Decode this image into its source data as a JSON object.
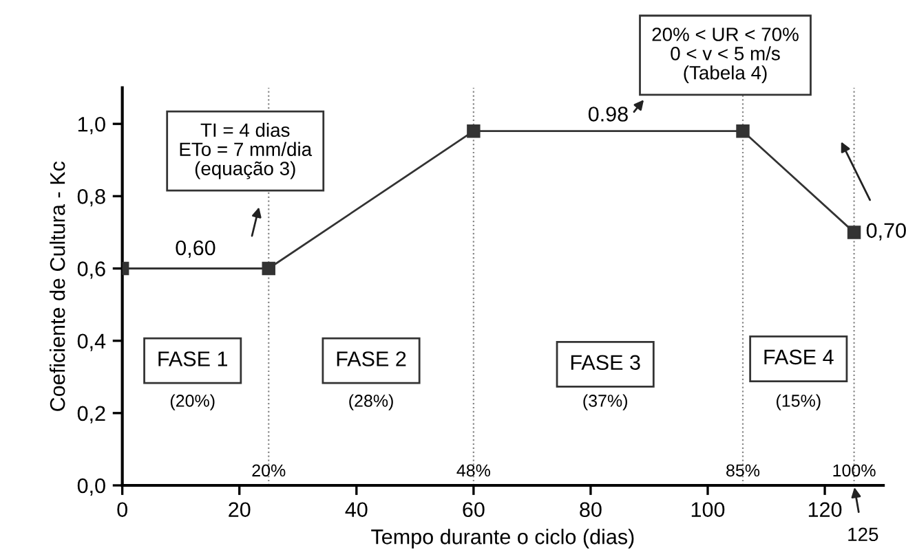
{
  "chart_data": {
    "type": "line",
    "xlabel": "Tempo durante o ciclo (dias)",
    "ylabel": "Coeficiente de Cultura - Kc",
    "x": [
      0,
      25,
      60,
      106,
      125
    ],
    "series": [
      {
        "color": "#333333",
        "values": [
          0.6,
          0.6,
          0.98,
          0.98,
          0.7
        ]
      }
    ],
    "marker": "square",
    "line_style": "solid",
    "grid": false,
    "xlim": [
      0,
      130
    ],
    "xticks": [
      0,
      20,
      40,
      60,
      80,
      100,
      120
    ],
    "ylim": [
      0,
      1.1
    ],
    "yticks": [
      {
        "value": 0,
        "label": "0,0"
      },
      {
        "value": 0.2,
        "label": "0,2"
      },
      {
        "value": 0.4,
        "label": "0,4"
      },
      {
        "value": 0.6,
        "label": "0,6"
      },
      {
        "value": 0.8,
        "label": "0,8"
      },
      {
        "value": 1.0,
        "label": "1,0"
      }
    ],
    "ref_lines": [
      {
        "axis": "x",
        "value": 25,
        "line_style": "dotted"
      },
      {
        "axis": "x",
        "value": 60,
        "line_style": "dotted"
      },
      {
        "axis": "x",
        "value": 106,
        "line_style": "dotted"
      },
      {
        "axis": "x",
        "value": 125,
        "line_style": "dotted"
      }
    ],
    "annotations": [
      "TI = 4 dias\nETo = 7 mm/dia\n(equação 3)",
      "20% < UR < 70%\n0 < v < 5 m/s\n(Tabela 4)",
      "FASE 1",
      "FASE 2",
      "FASE 3",
      "FASE 4",
      "(20%)",
      "(28%)",
      "(37%)",
      "(15%)",
      {
        "text": "0,60",
        "x": 12.5,
        "y": 0.6
      },
      {
        "text": "0.98",
        "x": 83,
        "y": 0.98
      },
      {
        "text": "0,70",
        "x": 125,
        "y": 0.7
      },
      {
        "text": "125",
        "x": 125,
        "y": 0
      },
      {
        "text": "20%",
        "x": 25,
        "y": 0
      },
      {
        "text": "48%",
        "x": 60,
        "y": 0
      },
      {
        "text": "85%",
        "x": 106,
        "y": 0
      },
      {
        "text": "100%",
        "x": 125,
        "y": 0
      }
    ]
  }
}
